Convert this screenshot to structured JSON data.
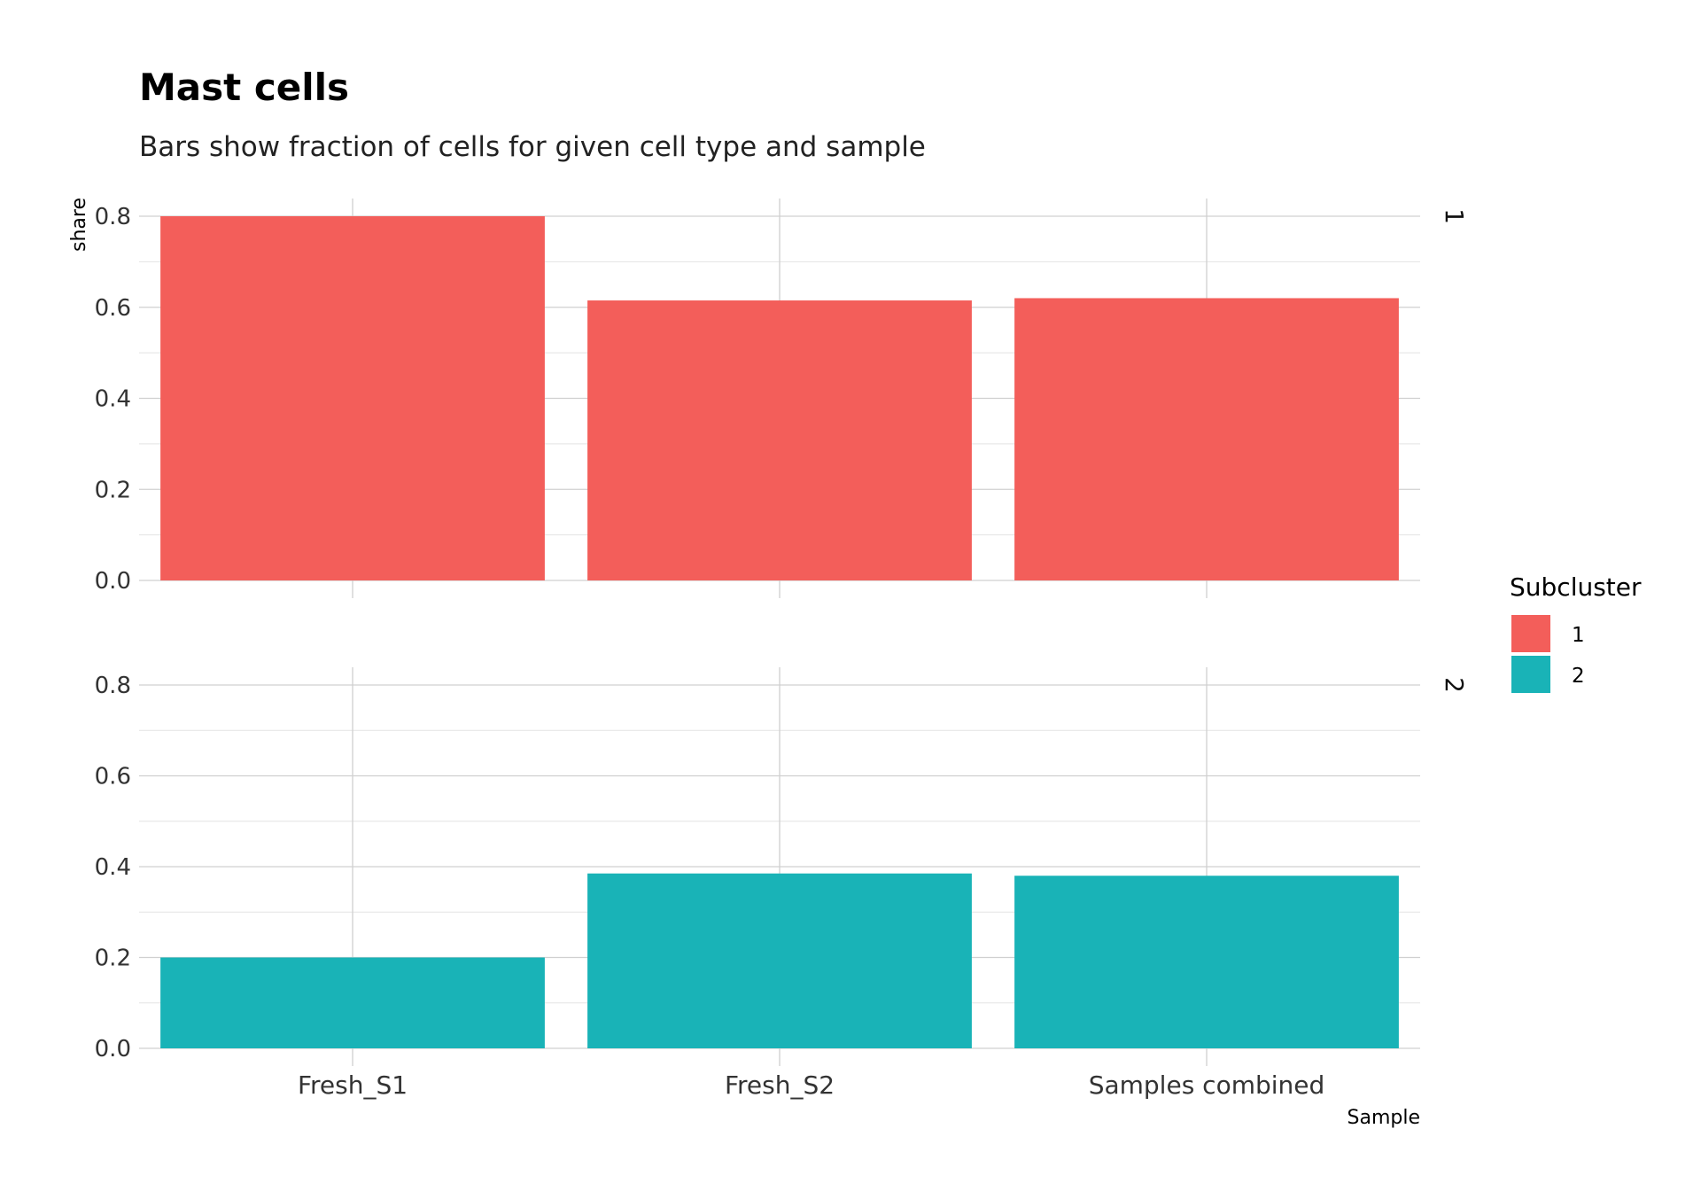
{
  "chart_data": {
    "type": "bar",
    "title": "Mast cells",
    "subtitle": "Bars show fraction of cells for given cell type and sample",
    "xlabel": "Sample",
    "ylabel": "share",
    "categories": [
      "Fresh_S1",
      "Fresh_S2",
      "Samples combined"
    ],
    "ylim": [
      0,
      0.8
    ],
    "yticks": [
      "0.0",
      "0.2",
      "0.4",
      "0.6",
      "0.8"
    ],
    "grid": true,
    "legend": {
      "title": "Subcluster",
      "placement": "right",
      "entries": [
        "1",
        "2"
      ]
    },
    "facets": [
      {
        "strip": "1",
        "series": [
          {
            "name": "1",
            "color": "#F35E5A",
            "values": [
              0.8,
              0.615,
              0.62
            ]
          }
        ]
      },
      {
        "strip": "2",
        "series": [
          {
            "name": "2",
            "color": "#19B3B7",
            "values": [
              0.2,
              0.385,
              0.38
            ]
          }
        ]
      }
    ]
  }
}
